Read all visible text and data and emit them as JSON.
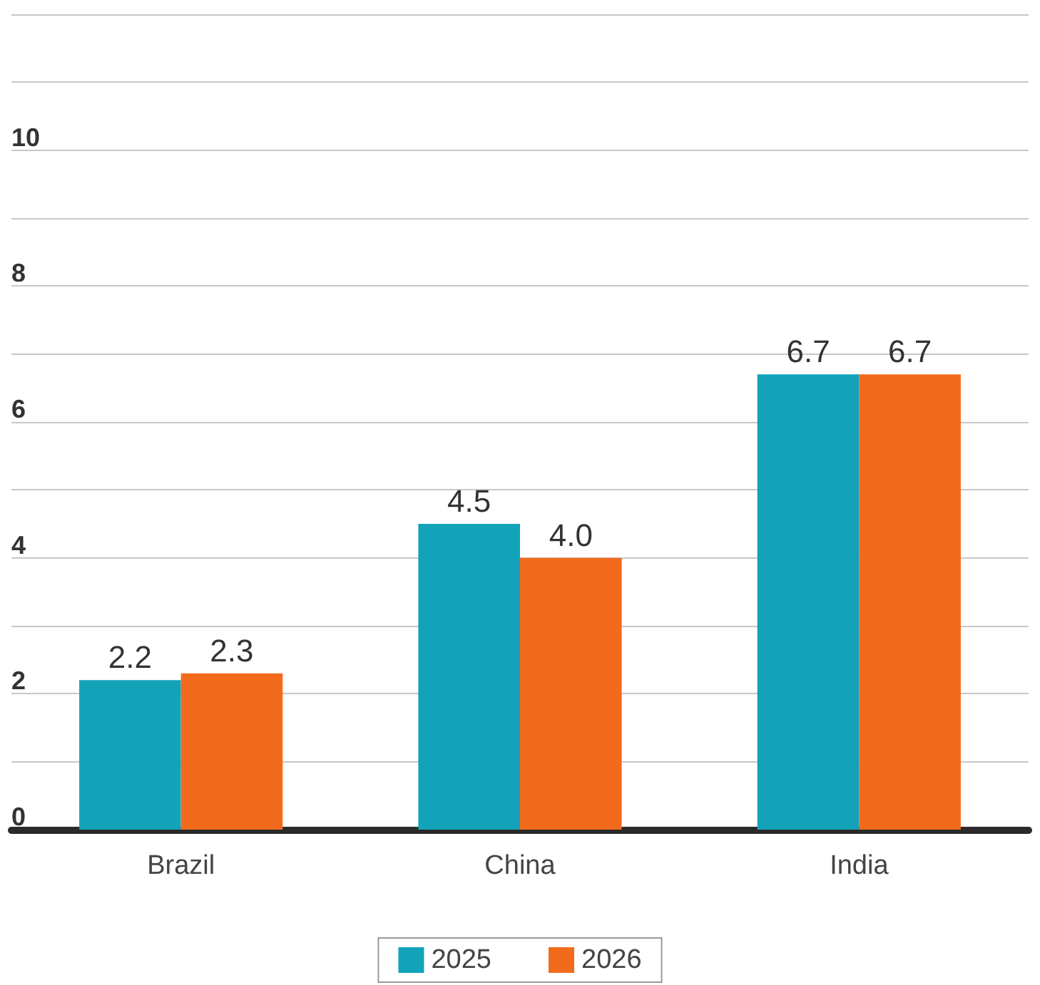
{
  "chart_data": {
    "type": "bar",
    "categories": [
      "Brazil",
      "China",
      "India"
    ],
    "series": [
      {
        "name": "2025",
        "color": "#12a3b9",
        "values": [
          2.2,
          4.5,
          6.7
        ],
        "value_labels": [
          "2.2",
          "4.5",
          "6.7"
        ]
      },
      {
        "name": "2026",
        "color": "#f26b1d",
        "values": [
          2.3,
          4.0,
          6.7
        ],
        "value_labels": [
          "2.3",
          "4.0",
          "6.7"
        ]
      }
    ],
    "ylim": [
      0,
      12
    ],
    "yticks": [
      0,
      {
        "value": 1,
        "label": null
      },
      2,
      {
        "value": 3,
        "label": null
      },
      4,
      {
        "value": 5,
        "label": null
      },
      6,
      {
        "value": 7,
        "label": null
      },
      8,
      {
        "value": 9,
        "label": null
      },
      10,
      {
        "value": 11,
        "label": null
      },
      {
        "value": 12,
        "label": null
      }
    ],
    "grid": "y",
    "legend": "bottom"
  }
}
